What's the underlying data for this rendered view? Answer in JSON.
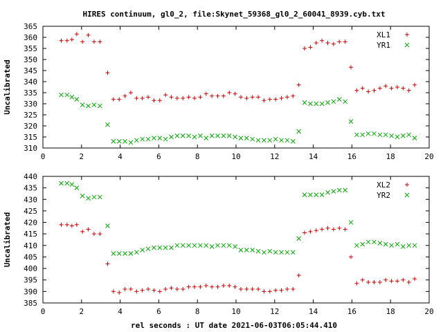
{
  "title": "HIRES continuum, gl0_2, file:Skynet_59368_gl0_2_60041_8939.cyb.txt",
  "xlabel": "rel seconds : UT date 2021-06-03T06:05:44.410",
  "colors": {
    "red": "#cc0000",
    "green": "#00aa00",
    "axis": "#000000"
  },
  "chart_data": [
    {
      "type": "scatter",
      "ylabel": "Uncalibrated",
      "xlim": [
        0,
        20
      ],
      "ylim": [
        310,
        365
      ],
      "xticks": [
        0,
        2,
        4,
        6,
        8,
        10,
        12,
        14,
        16,
        18,
        20
      ],
      "yticks": [
        310,
        315,
        320,
        325,
        330,
        335,
        340,
        345,
        350,
        355,
        360,
        365
      ],
      "legend_position": "top-right",
      "series": [
        {
          "name": "XL1",
          "marker": "plus",
          "color": "#cc0000",
          "x": [
            0.95,
            1.25,
            1.5,
            1.75,
            2.05,
            2.35,
            2.65,
            2.95,
            3.35,
            3.65,
            3.95,
            4.25,
            4.55,
            4.85,
            5.15,
            5.45,
            5.75,
            6.05,
            6.35,
            6.65,
            6.95,
            7.25,
            7.55,
            7.85,
            8.15,
            8.45,
            8.75,
            9.05,
            9.35,
            9.65,
            9.95,
            10.25,
            10.55,
            10.85,
            11.15,
            11.45,
            11.75,
            12.05,
            12.35,
            12.65,
            12.95,
            13.25,
            13.55,
            13.85,
            14.15,
            14.45,
            14.75,
            15.05,
            15.35,
            15.65,
            15.95,
            16.25,
            16.55,
            16.85,
            17.15,
            17.45,
            17.75,
            18.05,
            18.35,
            18.65,
            18.95,
            19.25
          ],
          "y": [
            358.5,
            358.5,
            359.0,
            361.5,
            358.0,
            361.0,
            358.0,
            358.0,
            344.0,
            332.0,
            332.0,
            333.5,
            335.0,
            332.5,
            332.5,
            333.0,
            331.5,
            331.5,
            334.0,
            333.0,
            332.5,
            332.5,
            333.0,
            332.5,
            333.0,
            334.5,
            333.5,
            333.5,
            333.5,
            335.0,
            334.5,
            333.0,
            332.5,
            333.0,
            333.0,
            331.5,
            332.0,
            332.0,
            332.5,
            333.0,
            333.5,
            338.5,
            355.0,
            355.5,
            357.5,
            358.5,
            357.5,
            357.0,
            358.0,
            358.0,
            346.5,
            336.0,
            337.0,
            335.5,
            336.0,
            337.0,
            338.0,
            337.0,
            337.5,
            337.0,
            336.0,
            338.5
          ]
        },
        {
          "name": "YR1",
          "marker": "cross",
          "color": "#00aa00",
          "x": [
            0.95,
            1.25,
            1.5,
            1.75,
            2.05,
            2.35,
            2.65,
            2.95,
            3.35,
            3.65,
            3.95,
            4.25,
            4.55,
            4.85,
            5.15,
            5.45,
            5.75,
            6.05,
            6.35,
            6.65,
            6.95,
            7.25,
            7.55,
            7.85,
            8.15,
            8.45,
            8.75,
            9.05,
            9.35,
            9.65,
            9.95,
            10.25,
            10.55,
            10.85,
            11.15,
            11.45,
            11.75,
            12.05,
            12.35,
            12.65,
            12.95,
            13.25,
            13.55,
            13.85,
            14.15,
            14.45,
            14.75,
            15.05,
            15.35,
            15.65,
            15.95,
            16.25,
            16.55,
            16.85,
            17.15,
            17.45,
            17.75,
            18.05,
            18.35,
            18.65,
            18.95,
            19.25
          ],
          "y": [
            334.0,
            334.0,
            333.0,
            332.0,
            329.5,
            329.0,
            329.5,
            329.0,
            320.5,
            313.0,
            313.0,
            313.0,
            312.5,
            313.5,
            314.0,
            314.0,
            314.5,
            314.5,
            314.0,
            315.0,
            315.5,
            315.5,
            315.5,
            315.0,
            315.5,
            314.5,
            315.5,
            315.5,
            315.5,
            315.5,
            315.0,
            314.5,
            314.5,
            314.0,
            313.5,
            313.5,
            313.5,
            314.0,
            313.5,
            313.5,
            313.0,
            317.5,
            330.5,
            330.0,
            330.0,
            330.0,
            330.5,
            331.0,
            332.0,
            331.0,
            322.0,
            316.0,
            316.0,
            316.5,
            316.5,
            316.0,
            316.0,
            315.5,
            315.0,
            315.5,
            316.0,
            314.5
          ]
        }
      ]
    },
    {
      "type": "scatter",
      "ylabel": "Uncalibrated",
      "xlim": [
        0,
        20
      ],
      "ylim": [
        385,
        440
      ],
      "xticks": [
        0,
        2,
        4,
        6,
        8,
        10,
        12,
        14,
        16,
        18,
        20
      ],
      "yticks": [
        385,
        390,
        395,
        400,
        405,
        410,
        415,
        420,
        425,
        430,
        435,
        440
      ],
      "legend_position": "top-right",
      "series": [
        {
          "name": "XL2",
          "marker": "plus",
          "color": "#cc0000",
          "x": [
            0.95,
            1.25,
            1.5,
            1.75,
            2.05,
            2.35,
            2.65,
            2.95,
            3.35,
            3.65,
            3.95,
            4.25,
            4.55,
            4.85,
            5.15,
            5.45,
            5.75,
            6.05,
            6.35,
            6.65,
            6.95,
            7.25,
            7.55,
            7.85,
            8.15,
            8.45,
            8.75,
            9.05,
            9.35,
            9.65,
            9.95,
            10.25,
            10.55,
            10.85,
            11.15,
            11.45,
            11.75,
            12.05,
            12.35,
            12.65,
            12.95,
            13.25,
            13.55,
            13.85,
            14.15,
            14.45,
            14.75,
            15.05,
            15.35,
            15.65,
            15.95,
            16.25,
            16.55,
            16.85,
            17.15,
            17.45,
            17.75,
            18.05,
            18.35,
            18.65,
            18.95,
            19.25
          ],
          "y": [
            419.0,
            419.0,
            418.5,
            419.0,
            416.0,
            417.0,
            415.0,
            415.0,
            402.0,
            390.0,
            389.5,
            391.0,
            391.0,
            390.0,
            390.5,
            391.0,
            390.5,
            390.0,
            391.0,
            391.5,
            391.0,
            391.0,
            392.0,
            392.0,
            392.0,
            392.5,
            392.0,
            392.0,
            392.5,
            392.5,
            392.0,
            391.0,
            391.0,
            391.0,
            391.0,
            390.0,
            390.0,
            390.5,
            390.5,
            391.0,
            391.0,
            397.0,
            415.5,
            416.0,
            416.5,
            417.0,
            417.5,
            417.0,
            417.5,
            417.0,
            405.0,
            393.5,
            395.0,
            394.0,
            394.0,
            394.0,
            395.0,
            394.5,
            394.5,
            395.0,
            394.0,
            395.5
          ]
        },
        {
          "name": "YR2",
          "marker": "cross",
          "color": "#00aa00",
          "x": [
            0.95,
            1.25,
            1.5,
            1.75,
            2.05,
            2.35,
            2.65,
            2.95,
            3.35,
            3.65,
            3.95,
            4.25,
            4.55,
            4.85,
            5.15,
            5.45,
            5.75,
            6.05,
            6.35,
            6.65,
            6.95,
            7.25,
            7.55,
            7.85,
            8.15,
            8.45,
            8.75,
            9.05,
            9.35,
            9.65,
            9.95,
            10.25,
            10.55,
            10.85,
            11.15,
            11.45,
            11.75,
            12.05,
            12.35,
            12.65,
            12.95,
            13.25,
            13.55,
            13.85,
            14.15,
            14.45,
            14.75,
            15.05,
            15.35,
            15.65,
            15.95,
            16.25,
            16.55,
            16.85,
            17.15,
            17.45,
            17.75,
            18.05,
            18.35,
            18.65,
            18.95,
            19.25
          ],
          "y": [
            437.0,
            437.0,
            436.5,
            435.0,
            431.5,
            430.5,
            431.0,
            431.0,
            418.5,
            406.5,
            406.5,
            406.5,
            406.5,
            407.0,
            408.0,
            408.5,
            409.0,
            409.0,
            409.0,
            409.0,
            410.0,
            410.0,
            410.0,
            410.0,
            410.0,
            410.0,
            409.5,
            410.0,
            410.0,
            410.0,
            409.5,
            408.0,
            408.0,
            408.0,
            407.5,
            407.0,
            407.5,
            407.0,
            407.0,
            407.0,
            407.0,
            413.0,
            432.0,
            432.0,
            432.0,
            432.0,
            433.0,
            433.5,
            434.0,
            434.0,
            420.0,
            410.0,
            410.5,
            411.5,
            411.5,
            411.0,
            410.5,
            410.0,
            410.5,
            409.5,
            410.0,
            410.0
          ]
        }
      ]
    }
  ]
}
